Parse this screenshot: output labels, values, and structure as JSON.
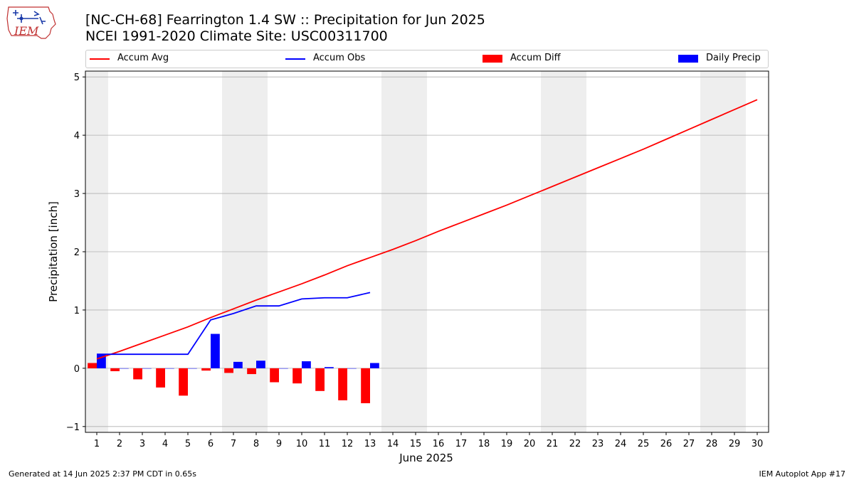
{
  "logo": {
    "text": "IEM"
  },
  "title_line1": "[NC-CH-68] Fearrington 1.4 SW :: Precipitation for Jun 2025",
  "title_line2": "NCEI 1991-2020 Climate Site: USC00311700",
  "footer_left": "Generated at 14 Jun 2025 2:37 PM CDT in 0.65s",
  "footer_right": "IEM Autoplot App #17",
  "legend": [
    {
      "label": "Accum Avg",
      "kind": "line",
      "color": "#ff0000"
    },
    {
      "label": "Accum Obs",
      "kind": "line",
      "color": "#0000ff"
    },
    {
      "label": "Accum Diff",
      "kind": "bar",
      "color": "#ff0000"
    },
    {
      "label": "Daily Precip",
      "kind": "bar",
      "color": "#0000ff"
    }
  ],
  "chart_data": {
    "type": "bar",
    "xlabel": "June 2025",
    "ylabel": "Precipitation [inch]",
    "xlim": [
      0.5,
      30.5
    ],
    "ylim": [
      -1.1,
      5.1
    ],
    "x_ticks": [
      1,
      2,
      3,
      4,
      5,
      6,
      7,
      8,
      9,
      10,
      11,
      12,
      13,
      14,
      15,
      16,
      17,
      18,
      19,
      20,
      21,
      22,
      23,
      24,
      25,
      26,
      27,
      28,
      29,
      30
    ],
    "y_ticks": [
      -1,
      0,
      1,
      2,
      3,
      4,
      5
    ],
    "grid": "horizontal",
    "legend_position": "top",
    "weekend_shading": [
      [
        0.5,
        1.5
      ],
      [
        6.5,
        8.5
      ],
      [
        13.5,
        15.5
      ],
      [
        20.5,
        22.5
      ],
      [
        27.5,
        29.5
      ]
    ],
    "series": [
      {
        "name": "Accum Avg",
        "kind": "line",
        "color": "#ff0000",
        "x": [
          1,
          2,
          3,
          4,
          5,
          6,
          7,
          8,
          9,
          10,
          11,
          12,
          13,
          14,
          15,
          16,
          17,
          18,
          19,
          20,
          21,
          22,
          23,
          24,
          25,
          26,
          27,
          28,
          29,
          30
        ],
        "values": [
          0.16,
          0.29,
          0.43,
          0.57,
          0.71,
          0.87,
          1.02,
          1.17,
          1.31,
          1.45,
          1.6,
          1.76,
          1.9,
          2.04,
          2.19,
          2.35,
          2.5,
          2.65,
          2.8,
          2.96,
          3.12,
          3.28,
          3.44,
          3.6,
          3.76,
          3.93,
          4.1,
          4.27,
          4.44,
          4.61
        ]
      },
      {
        "name": "Accum Obs",
        "kind": "line",
        "color": "#0000ff",
        "x": [
          1,
          2,
          3,
          4,
          5,
          6,
          7,
          8,
          9,
          10,
          11,
          12,
          13
        ],
        "values": [
          0.24,
          0.24,
          0.24,
          0.24,
          0.24,
          0.83,
          0.94,
          1.07,
          1.07,
          1.19,
          1.21,
          1.21,
          1.3
        ]
      },
      {
        "name": "Accum Diff",
        "kind": "bar",
        "color": "#ff0000",
        "x": [
          1,
          2,
          3,
          4,
          5,
          6,
          7,
          8,
          9,
          10,
          11,
          12,
          13
        ],
        "values": [
          0.09,
          -0.05,
          -0.19,
          -0.33,
          -0.47,
          -0.04,
          -0.08,
          -0.1,
          -0.24,
          -0.26,
          -0.39,
          -0.55,
          -0.6
        ]
      },
      {
        "name": "Daily Precip",
        "kind": "bar",
        "color": "#0000ff",
        "x": [
          1,
          2,
          3,
          4,
          5,
          6,
          7,
          8,
          9,
          10,
          11,
          12,
          13
        ],
        "values": [
          0.24,
          0.0,
          0.0,
          0.0,
          0.0,
          0.59,
          0.11,
          0.13,
          0.0,
          0.12,
          0.02,
          0.0,
          0.09
        ]
      }
    ]
  }
}
